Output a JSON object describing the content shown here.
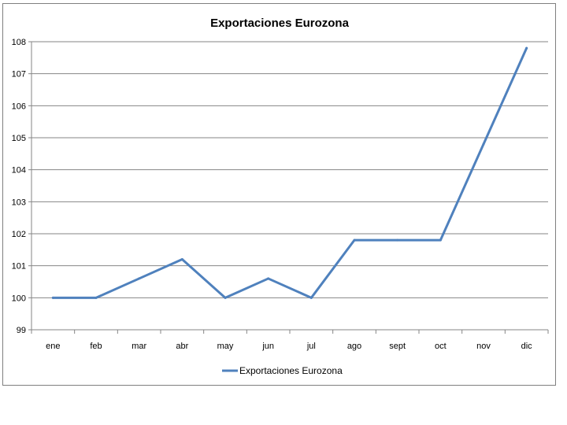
{
  "chart_data": {
    "type": "line",
    "title": "Exportaciones Eurozona",
    "xlabel": "",
    "ylabel": "",
    "categories": [
      "ene",
      "feb",
      "mar",
      "abr",
      "may",
      "jun",
      "jul",
      "ago",
      "sept",
      "oct",
      "nov",
      "dic"
    ],
    "series": [
      {
        "name": "Exportaciones Eurozona",
        "values": [
          100.0,
          100.0,
          100.6,
          101.2,
          100.0,
          100.6,
          100.0,
          101.8,
          101.8,
          101.8,
          104.8,
          107.8
        ],
        "color": "#4f81bd"
      }
    ],
    "ylim": [
      99,
      108
    ],
    "yticks": [
      99,
      100,
      101,
      102,
      103,
      104,
      105,
      106,
      107,
      108
    ],
    "grid": true,
    "legend": "bottom"
  }
}
